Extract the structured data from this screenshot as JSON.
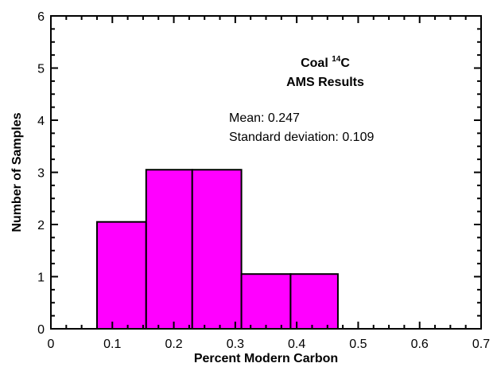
{
  "chart_data": {
    "type": "bar",
    "bins": [
      {
        "x0": 0.075,
        "x1": 0.155,
        "count": 2.05
      },
      {
        "x0": 0.155,
        "x1": 0.23,
        "count": 3.05
      },
      {
        "x0": 0.23,
        "x1": 0.31,
        "count": 3.05
      },
      {
        "x0": 0.31,
        "x1": 0.39,
        "count": 1.05
      },
      {
        "x0": 0.39,
        "x1": 0.467,
        "count": 1.05
      }
    ],
    "xlabel": "Percent Modern Carbon",
    "ylabel": "Number of Samples",
    "xlim": [
      0,
      0.7
    ],
    "ylim": [
      0,
      6
    ],
    "x_ticks": [
      "0",
      "0.1",
      "0.2",
      "0.3",
      "0.4",
      "0.5",
      "0.6",
      "0.7"
    ],
    "y_ticks": [
      "0",
      "1",
      "2",
      "3",
      "4",
      "5",
      "6"
    ],
    "grid": false,
    "bar_color": "#ff00ff",
    "annotations": {
      "title_prefix": "Coal ",
      "title_sup": "14",
      "title_suffix": "C",
      "title_line2": "AMS Results",
      "mean": "Mean: 0.247",
      "std": "Standard deviation: 0.109"
    }
  }
}
